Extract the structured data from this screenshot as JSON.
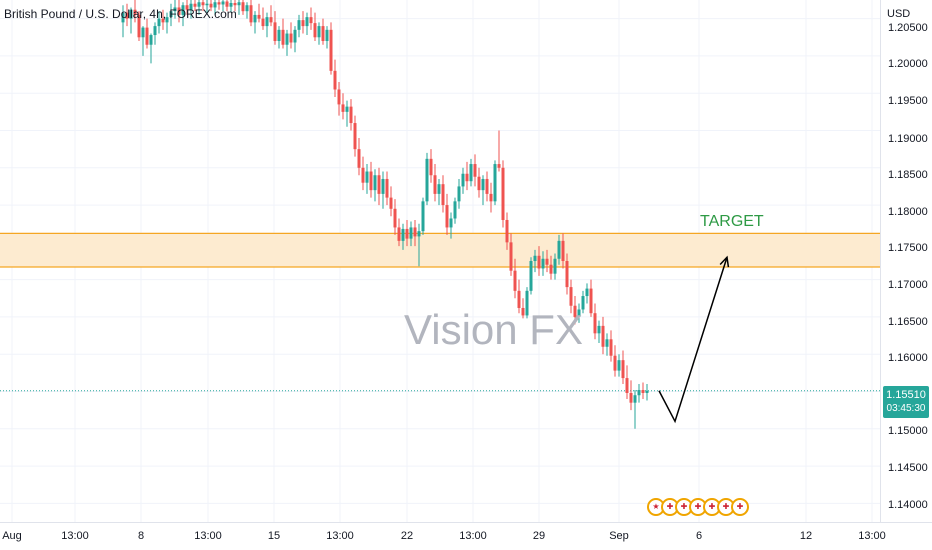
{
  "header": {
    "symbol_title": "British Pound / U.S. Dollar, 4h, FOREX.com"
  },
  "watermark": "Vision FX",
  "annotations": {
    "target_label": "TARGET"
  },
  "price_axis": {
    "currency": "USD",
    "ticks": [
      "1.20500",
      "1.20000",
      "1.19500",
      "1.19000",
      "1.18500",
      "1.18000",
      "1.17500",
      "1.17000",
      "1.16500",
      "1.16000",
      "1.15500",
      "1.15000",
      "1.14500",
      "1.14000"
    ],
    "last_price": "1.15510",
    "countdown": "03:45:30"
  },
  "time_axis": {
    "ticks": [
      "Aug",
      "13:00",
      "8",
      "13:00",
      "15",
      "13:00",
      "22",
      "13:00",
      "29",
      "Sep",
      "6",
      "12",
      "13:00"
    ]
  },
  "event_icons": [
    "us-flag-icon",
    "uk-flag-icon",
    "uk-flag-icon",
    "uk-flag-icon",
    "uk-flag-icon",
    "uk-flag-icon",
    "uk-flag-icon"
  ],
  "colors": {
    "up": "#26a69a",
    "down": "#ef5350",
    "zone_fill": "#fdebd0",
    "zone_border": "#f5a623",
    "target_text": "#2e9a45",
    "grid": "#f0f3fa",
    "watermark": "#b2b5be"
  },
  "chart_data": {
    "type": "candlestick",
    "title": "British Pound / U.S. Dollar, 4h, FOREX.com",
    "ylim": [
      1.1375,
      1.2075
    ],
    "resistance_zone": [
      1.1717,
      1.1762
    ],
    "last_price": 1.1551,
    "projection_path": [
      {
        "x_index": 134,
        "y": 1.1551
      },
      {
        "x_index": 138,
        "y": 1.151
      },
      {
        "x_index": 151,
        "y": 1.173
      }
    ],
    "candles": [
      [
        1.2045,
        1.2068,
        1.2025,
        1.2058
      ],
      [
        1.2058,
        1.207,
        1.204,
        1.205
      ],
      [
        1.205,
        1.2065,
        1.203,
        1.2062
      ],
      [
        1.2062,
        1.2075,
        1.2045,
        1.2055
      ],
      [
        1.2055,
        1.206,
        1.202,
        1.2025
      ],
      [
        1.2025,
        1.204,
        1.2,
        1.2038
      ],
      [
        1.2038,
        1.205,
        1.201,
        1.2015
      ],
      [
        1.2015,
        1.203,
        1.199,
        1.2028
      ],
      [
        1.2028,
        1.2045,
        1.2015,
        1.204
      ],
      [
        1.204,
        1.206,
        1.203,
        1.205
      ],
      [
        1.205,
        1.2062,
        1.2035,
        1.2045
      ],
      [
        1.2045,
        1.2058,
        1.203,
        1.2052
      ],
      [
        1.2052,
        1.207,
        1.204,
        1.206
      ],
      [
        1.206,
        1.2075,
        1.205,
        1.2065
      ],
      [
        1.2065,
        1.2075,
        1.2045,
        1.2055
      ],
      [
        1.2055,
        1.2072,
        1.204,
        1.2068
      ],
      [
        1.2068,
        1.2075,
        1.2055,
        1.2062
      ],
      [
        1.2062,
        1.2075,
        1.205,
        1.207
      ],
      [
        1.207,
        1.2075,
        1.206,
        1.2066
      ],
      [
        1.2066,
        1.2075,
        1.2055,
        1.2072
      ],
      [
        1.2072,
        1.2075,
        1.206,
        1.2068
      ],
      [
        1.2068,
        1.2075,
        1.2058,
        1.207
      ],
      [
        1.207,
        1.2075,
        1.206,
        1.2065
      ],
      [
        1.2065,
        1.2075,
        1.2055,
        1.2072
      ],
      [
        1.2072,
        1.2075,
        1.2062,
        1.2069
      ],
      [
        1.2069,
        1.2075,
        1.206,
        1.2073
      ],
      [
        1.2073,
        1.2075,
        1.206,
        1.2066
      ],
      [
        1.2066,
        1.2075,
        1.2058,
        1.2071
      ],
      [
        1.2071,
        1.2075,
        1.206,
        1.2068
      ],
      [
        1.2068,
        1.2075,
        1.2055,
        1.2072
      ],
      [
        1.2072,
        1.2075,
        1.2055,
        1.206
      ],
      [
        1.206,
        1.2072,
        1.205,
        1.2068
      ],
      [
        1.2068,
        1.2075,
        1.204,
        1.2045
      ],
      [
        1.2045,
        1.206,
        1.203,
        1.2055
      ],
      [
        1.2055,
        1.207,
        1.2045,
        1.205
      ],
      [
        1.205,
        1.2065,
        1.2035,
        1.204
      ],
      [
        1.204,
        1.2058,
        1.2025,
        1.2052
      ],
      [
        1.2052,
        1.2068,
        1.204,
        1.2045
      ],
      [
        1.2045,
        1.206,
        1.2015,
        1.202
      ],
      [
        1.202,
        1.204,
        1.201,
        1.2035
      ],
      [
        1.2035,
        1.205,
        1.201,
        1.2015
      ],
      [
        1.2015,
        1.2035,
        1.2,
        1.203
      ],
      [
        1.203,
        1.2045,
        1.201,
        1.2018
      ],
      [
        1.2018,
        1.204,
        1.2005,
        1.2035
      ],
      [
        1.2035,
        1.2055,
        1.2025,
        1.2048
      ],
      [
        1.2048,
        1.206,
        1.203,
        1.204
      ],
      [
        1.204,
        1.2058,
        1.2028,
        1.2052
      ],
      [
        1.2052,
        1.2065,
        1.2035,
        1.2044
      ],
      [
        1.2044,
        1.2058,
        1.202,
        1.2025
      ],
      [
        1.2025,
        1.2045,
        1.2015,
        1.204
      ],
      [
        1.204,
        1.205,
        1.2015,
        1.202
      ],
      [
        1.202,
        1.204,
        1.201,
        1.2035
      ],
      [
        1.2035,
        1.2045,
        1.1975,
        1.198
      ],
      [
        1.198,
        1.1995,
        1.1945,
        1.1955
      ],
      [
        1.1955,
        1.1965,
        1.192,
        1.1935
      ],
      [
        1.1935,
        1.195,
        1.1915,
        1.1925
      ],
      [
        1.1925,
        1.194,
        1.1905,
        1.1932
      ],
      [
        1.1932,
        1.1942,
        1.19,
        1.191
      ],
      [
        1.191,
        1.192,
        1.1865,
        1.1875
      ],
      [
        1.1875,
        1.189,
        1.184,
        1.185
      ],
      [
        1.185,
        1.1865,
        1.182,
        1.183
      ],
      [
        1.183,
        1.1855,
        1.1815,
        1.1845
      ],
      [
        1.1845,
        1.1858,
        1.181,
        1.182
      ],
      [
        1.182,
        1.1848,
        1.1805,
        1.184
      ],
      [
        1.184,
        1.185,
        1.18,
        1.1815
      ],
      [
        1.1815,
        1.1845,
        1.1795,
        1.1835
      ],
      [
        1.1835,
        1.1845,
        1.18,
        1.181
      ],
      [
        1.181,
        1.1825,
        1.1785,
        1.1795
      ],
      [
        1.1795,
        1.1808,
        1.176,
        1.177
      ],
      [
        1.177,
        1.1782,
        1.1745,
        1.1752
      ],
      [
        1.1752,
        1.1775,
        1.174,
        1.1768
      ],
      [
        1.1768,
        1.178,
        1.1745,
        1.1755
      ],
      [
        1.1755,
        1.1778,
        1.1745,
        1.177
      ],
      [
        1.177,
        1.178,
        1.1745,
        1.1758
      ],
      [
        1.1758,
        1.1775,
        1.1718,
        1.1765
      ],
      [
        1.1765,
        1.181,
        1.176,
        1.1805
      ],
      [
        1.1805,
        1.187,
        1.18,
        1.1862
      ],
      [
        1.1862,
        1.1875,
        1.183,
        1.184
      ],
      [
        1.184,
        1.1855,
        1.1805,
        1.1815
      ],
      [
        1.1815,
        1.1835,
        1.18,
        1.1828
      ],
      [
        1.1828,
        1.184,
        1.179,
        1.18
      ],
      [
        1.18,
        1.1815,
        1.176,
        1.177
      ],
      [
        1.177,
        1.179,
        1.1755,
        1.1782
      ],
      [
        1.1782,
        1.181,
        1.1775,
        1.1805
      ],
      [
        1.1805,
        1.1835,
        1.1795,
        1.1825
      ],
      [
        1.1825,
        1.185,
        1.1815,
        1.1842
      ],
      [
        1.1842,
        1.1858,
        1.182,
        1.1832
      ],
      [
        1.1832,
        1.1862,
        1.1825,
        1.1855
      ],
      [
        1.1855,
        1.1868,
        1.1825,
        1.1838
      ],
      [
        1.1838,
        1.185,
        1.181,
        1.182
      ],
      [
        1.182,
        1.184,
        1.18,
        1.1835
      ],
      [
        1.1835,
        1.1845,
        1.1805,
        1.1815
      ],
      [
        1.1815,
        1.183,
        1.179,
        1.1805
      ],
      [
        1.1805,
        1.186,
        1.18,
        1.1855
      ],
      [
        1.1855,
        1.19,
        1.1845,
        1.185
      ],
      [
        1.185,
        1.186,
        1.177,
        1.178
      ],
      [
        1.178,
        1.179,
        1.174,
        1.175
      ],
      [
        1.175,
        1.1762,
        1.1705,
        1.1712
      ],
      [
        1.1712,
        1.1728,
        1.1675,
        1.1685
      ],
      [
        1.1685,
        1.17,
        1.1655,
        1.1662
      ],
      [
        1.1662,
        1.1675,
        1.1648,
        1.1652
      ],
      [
        1.1652,
        1.169,
        1.1648,
        1.1685
      ],
      [
        1.1685,
        1.173,
        1.168,
        1.1725
      ],
      [
        1.1725,
        1.174,
        1.171,
        1.1732
      ],
      [
        1.1732,
        1.1745,
        1.1705,
        1.1715
      ],
      [
        1.1715,
        1.1738,
        1.1705,
        1.1728
      ],
      [
        1.1728,
        1.174,
        1.171,
        1.172
      ],
      [
        1.172,
        1.1732,
        1.17,
        1.1708
      ],
      [
        1.1708,
        1.1735,
        1.17,
        1.1728
      ],
      [
        1.1728,
        1.176,
        1.172,
        1.1752
      ],
      [
        1.1752,
        1.1762,
        1.1715,
        1.1725
      ],
      [
        1.1725,
        1.1735,
        1.168,
        1.169
      ],
      [
        1.169,
        1.17,
        1.1655,
        1.1665
      ],
      [
        1.1665,
        1.1678,
        1.164,
        1.165
      ],
      [
        1.165,
        1.1668,
        1.1642,
        1.166
      ],
      [
        1.166,
        1.1685,
        1.1655,
        1.1678
      ],
      [
        1.1678,
        1.1695,
        1.1668,
        1.1688
      ],
      [
        1.1688,
        1.17,
        1.165,
        1.1655
      ],
      [
        1.1655,
        1.1668,
        1.162,
        1.1628
      ],
      [
        1.1628,
        1.1645,
        1.1615,
        1.1638
      ],
      [
        1.1638,
        1.165,
        1.16,
        1.161
      ],
      [
        1.161,
        1.1628,
        1.1598,
        1.162
      ],
      [
        1.162,
        1.1632,
        1.159,
        1.1598
      ],
      [
        1.1598,
        1.1612,
        1.157,
        1.1578
      ],
      [
        1.1578,
        1.16,
        1.157,
        1.1592
      ],
      [
        1.1592,
        1.1605,
        1.156,
        1.1568
      ],
      [
        1.1568,
        1.1585,
        1.154,
        1.1548
      ],
      [
        1.1548,
        1.1565,
        1.1525,
        1.1535
      ],
      [
        1.1535,
        1.1552,
        1.15,
        1.1545
      ],
      [
        1.1545,
        1.156,
        1.1535,
        1.1552
      ],
      [
        1.1552,
        1.1562,
        1.154,
        1.1548
      ],
      [
        1.1548,
        1.156,
        1.1538,
        1.1551
      ]
    ]
  }
}
